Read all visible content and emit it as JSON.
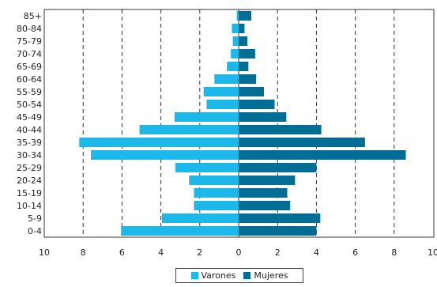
{
  "chart_data": {
    "type": "bar",
    "orientation": "horizontal",
    "layout": "population-pyramid",
    "categories": [
      "85+",
      "80-84",
      "75-79",
      "70-74",
      "65-69",
      "60-64",
      "55-59",
      "50-54",
      "45-49",
      "40-44",
      "35-39",
      "30-34",
      "25-29",
      "20-24",
      "15-19",
      "10-14",
      "5-9",
      "0-4"
    ],
    "series": [
      {
        "name": "Varones",
        "side": "left",
        "color": "#1cb8ea",
        "values": [
          0.1,
          0.35,
          0.3,
          0.4,
          0.6,
          1.25,
          1.8,
          1.65,
          3.3,
          5.1,
          8.2,
          7.6,
          3.25,
          2.55,
          2.3,
          2.3,
          3.95,
          6.05
        ]
      },
      {
        "name": "Mujeres",
        "side": "right",
        "color": "#006d94",
        "values": [
          0.65,
          0.3,
          0.45,
          0.85,
          0.5,
          0.9,
          1.3,
          1.85,
          2.45,
          4.25,
          6.5,
          8.6,
          4.0,
          2.9,
          2.5,
          2.65,
          4.2,
          4.0
        ]
      }
    ],
    "xlim": [
      -10,
      10
    ],
    "xticks": [
      -10,
      -8,
      -6,
      -4,
      -2,
      0,
      2,
      4,
      6,
      8,
      10
    ],
    "xtick_labels": [
      "10",
      "8",
      "6",
      "4",
      "2",
      "0",
      "2",
      "4",
      "6",
      "8",
      "10"
    ],
    "grid": "vertical-dashed",
    "legend_position": "bottom-center"
  }
}
